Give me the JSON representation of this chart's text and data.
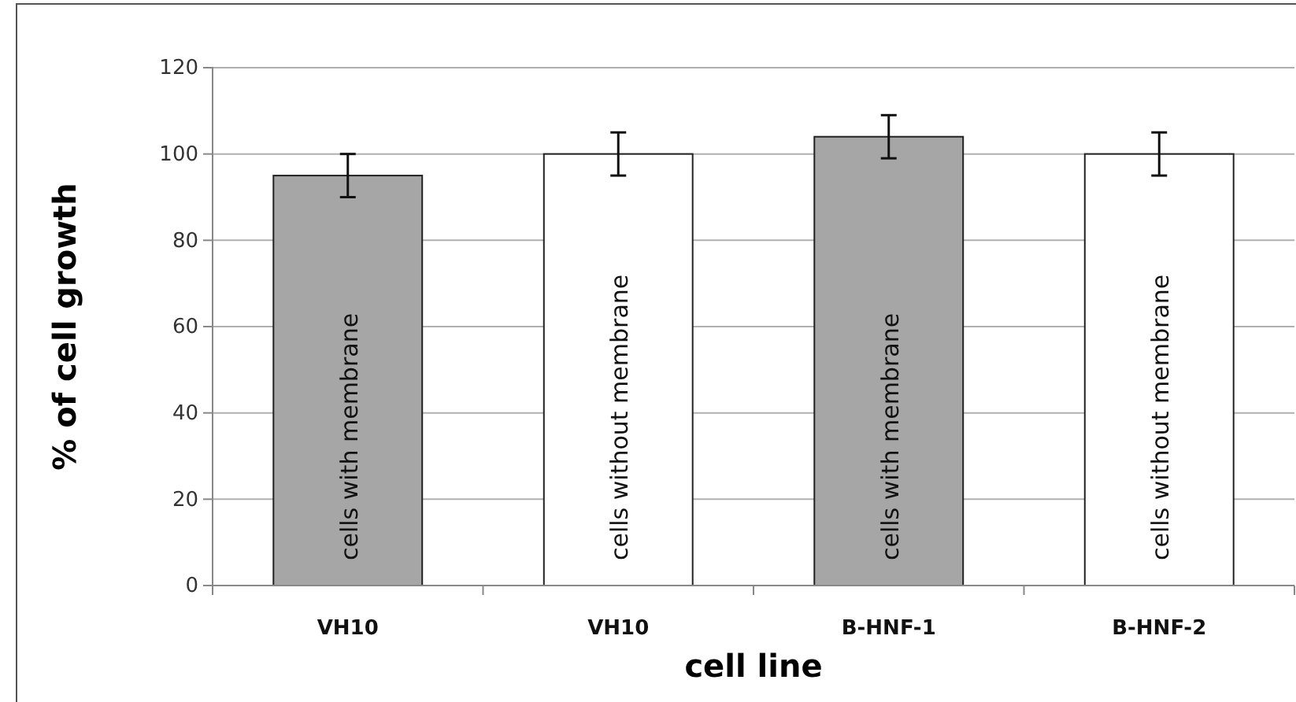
{
  "chart_data": {
    "type": "bar",
    "xlabel": "cell line",
    "ylabel": "%  of cell growth",
    "categories": [
      "VH10",
      "VH10",
      "B-HNF-1",
      "B-HNF-2"
    ],
    "values": [
      95,
      100,
      104,
      100
    ],
    "colors": [
      "#a6a6a6",
      "#ffffff",
      "#a6a6a6",
      "#ffffff"
    ],
    "errors": [
      5,
      5,
      5,
      5
    ],
    "ylim": [
      0,
      120
    ],
    "yticks": [
      0,
      20,
      40,
      60,
      80,
      100,
      120
    ],
    "grid": "y",
    "annotations": [
      "cells with membrane",
      "cells without membrane",
      "cells with membrane",
      "cells without membrane"
    ]
  }
}
